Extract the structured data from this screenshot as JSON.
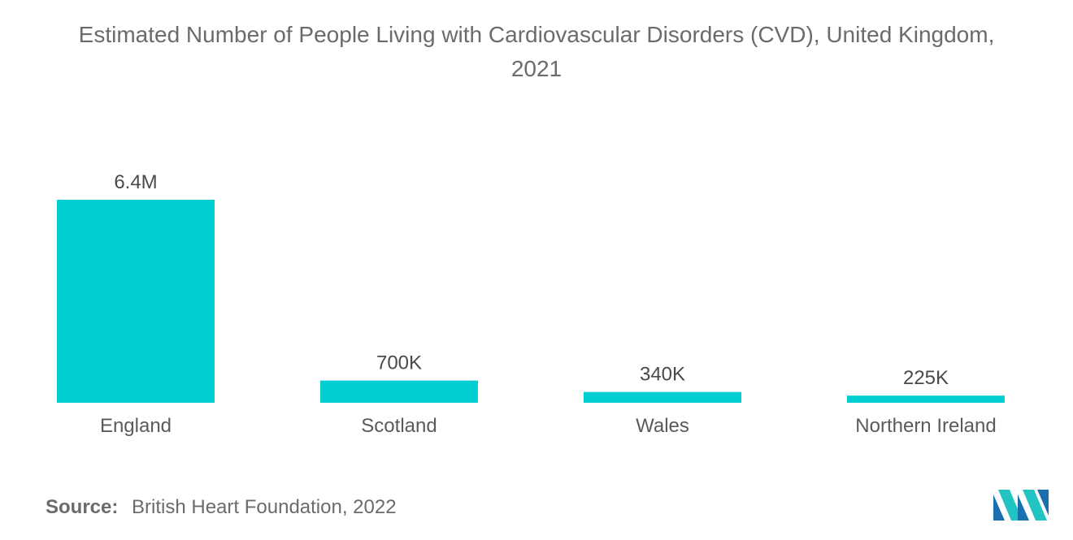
{
  "chart_data": {
    "type": "bar",
    "title_line1": "Estimated Number of People Living with Cardiovascular Disorders (CVD), United Kingdom,",
    "title_line2": "2021",
    "categories": [
      "England",
      "Scotland",
      "Wales",
      "Northern Ireland"
    ],
    "values": [
      6400000,
      700000,
      340000,
      225000
    ],
    "data_labels": [
      "6.4M",
      "700K",
      "340K",
      "225K"
    ],
    "xlabel": "",
    "ylabel": "",
    "grid": false,
    "legend": "none",
    "bar_color": "#00ced1"
  },
  "source": {
    "label": "Source:",
    "text": "British Heart Foundation, 2022"
  },
  "logo": {
    "icon": "mordor-intelligence-logo",
    "colors": [
      "#1a6fb0",
      "#22c3c3"
    ]
  }
}
